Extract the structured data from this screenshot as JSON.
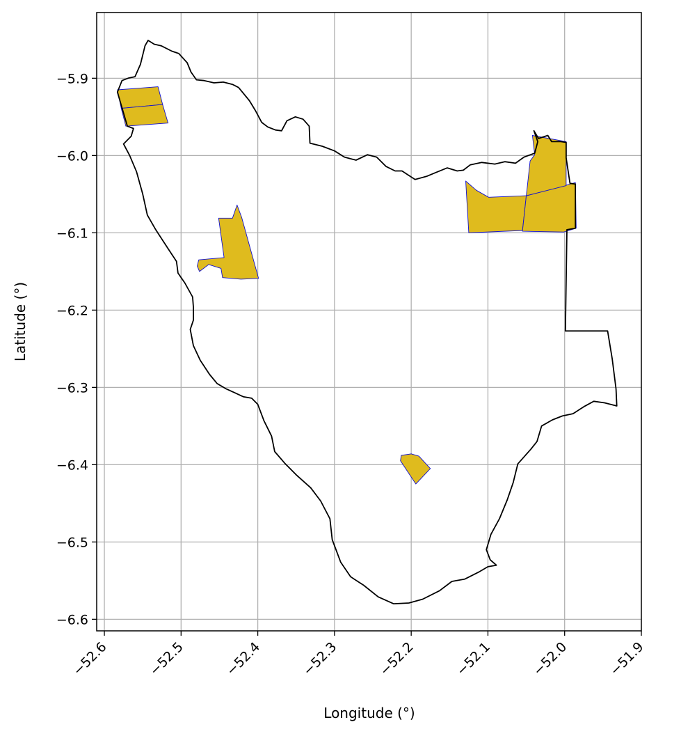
{
  "chart_data": {
    "type": "map",
    "xlabel": "Longitude (°)",
    "ylabel": "Latitude (°)",
    "xlim": [
      -52.61,
      -51.9
    ],
    "ylim": [
      -6.615,
      -5.815
    ],
    "x_ticks": [
      -52.6,
      -52.5,
      -52.4,
      -52.3,
      -52.2,
      -52.1,
      -52.0,
      -51.9
    ],
    "x_tick_labels": [
      "−52.6",
      "−52.5",
      "−52.4",
      "−52.3",
      "−52.2",
      "−52.1",
      "−52.0",
      "−51.9"
    ],
    "y_ticks": [
      -5.9,
      -6.0,
      -6.1,
      -6.2,
      -6.3,
      -6.4,
      -6.5,
      -6.6
    ],
    "y_tick_labels": [
      "−5.9",
      "−6.0",
      "−6.1",
      "−6.2",
      "−6.3",
      "−6.4",
      "−6.5",
      "−6.6"
    ],
    "grid": true,
    "colors": {
      "boundary": "#000000",
      "parcel_fill": "#dfbb1e",
      "parcel_edge": "#1010d0",
      "grid": "#b0b0b0"
    },
    "boundary": [
      [
        -52.543,
        -5.851
      ],
      [
        -52.535,
        -5.856
      ],
      [
        -52.526,
        -5.858
      ],
      [
        -52.512,
        -5.865
      ],
      [
        -52.503,
        -5.868
      ],
      [
        -52.492,
        -5.88
      ],
      [
        -52.487,
        -5.892
      ],
      [
        -52.48,
        -5.902
      ],
      [
        -52.47,
        -5.903
      ],
      [
        -52.457,
        -5.906
      ],
      [
        -52.445,
        -5.905
      ],
      [
        -52.433,
        -5.908
      ],
      [
        -52.425,
        -5.912
      ],
      [
        -52.411,
        -5.929
      ],
      [
        -52.403,
        -5.942
      ],
      [
        -52.395,
        -5.957
      ],
      [
        -52.387,
        -5.963
      ],
      [
        -52.377,
        -5.967
      ],
      [
        -52.369,
        -5.968
      ],
      [
        -52.362,
        -5.955
      ],
      [
        -52.351,
        -5.95
      ],
      [
        -52.341,
        -5.953
      ],
      [
        -52.333,
        -5.962
      ],
      [
        -52.332,
        -5.984
      ],
      [
        -52.316,
        -5.988
      ],
      [
        -52.3,
        -5.994
      ],
      [
        -52.287,
        -6.002
      ],
      [
        -52.272,
        -6.006
      ],
      [
        -52.257,
        -5.999
      ],
      [
        -52.245,
        -6.002
      ],
      [
        -52.233,
        -6.014
      ],
      [
        -52.221,
        -6.02
      ],
      [
        -52.212,
        -6.02
      ],
      [
        -52.195,
        -6.031
      ],
      [
        -52.18,
        -6.027
      ],
      [
        -52.168,
        -6.022
      ],
      [
        -52.153,
        -6.016
      ],
      [
        -52.14,
        -6.02
      ],
      [
        -52.132,
        -6.019
      ],
      [
        -52.123,
        -6.012
      ],
      [
        -52.108,
        -6.009
      ],
      [
        -52.091,
        -6.011
      ],
      [
        -52.078,
        -6.008
      ],
      [
        -52.064,
        -6.01
      ],
      [
        -52.053,
        -6.002
      ],
      [
        -52.039,
        -5.997
      ],
      [
        -52.035,
        -5.982
      ],
      [
        -52.04,
        -5.968
      ],
      [
        -52.034,
        -5.978
      ],
      [
        -52.022,
        -5.974
      ],
      [
        -52.017,
        -5.982
      ],
      [
        -52.005,
        -5.982
      ],
      [
        -51.998,
        -5.983
      ],
      [
        -51.998,
        -6.003
      ],
      [
        -51.993,
        -6.036
      ],
      [
        -51.986,
        -6.037
      ],
      [
        -51.986,
        -6.055
      ],
      [
        -51.986,
        -6.094
      ],
      [
        -51.997,
        -6.096
      ],
      [
        -51.999,
        -6.227
      ],
      [
        -51.944,
        -6.227
      ],
      [
        -51.938,
        -6.263
      ],
      [
        -51.933,
        -6.302
      ],
      [
        -51.932,
        -6.324
      ],
      [
        -51.948,
        -6.32
      ],
      [
        -51.962,
        -6.318
      ],
      [
        -51.975,
        -6.325
      ],
      [
        -51.989,
        -6.334
      ],
      [
        -52.003,
        -6.337
      ],
      [
        -52.016,
        -6.342
      ],
      [
        -52.03,
        -6.35
      ],
      [
        -52.036,
        -6.37
      ],
      [
        -52.044,
        -6.38
      ],
      [
        -52.061,
        -6.399
      ],
      [
        -52.067,
        -6.423
      ],
      [
        -52.075,
        -6.446
      ],
      [
        -52.085,
        -6.47
      ],
      [
        -52.096,
        -6.49
      ],
      [
        -52.102,
        -6.51
      ],
      [
        -52.097,
        -6.523
      ],
      [
        -52.089,
        -6.53
      ],
      [
        -52.1,
        -6.532
      ],
      [
        -52.112,
        -6.539
      ],
      [
        -52.13,
        -6.548
      ],
      [
        -52.147,
        -6.551
      ],
      [
        -52.163,
        -6.563
      ],
      [
        -52.185,
        -6.574
      ],
      [
        -52.203,
        -6.579
      ],
      [
        -52.223,
        -6.58
      ],
      [
        -52.243,
        -6.571
      ],
      [
        -52.262,
        -6.556
      ],
      [
        -52.279,
        -6.545
      ],
      [
        -52.292,
        -6.526
      ],
      [
        -52.303,
        -6.497
      ],
      [
        -52.306,
        -6.47
      ],
      [
        -52.318,
        -6.447
      ],
      [
        -52.331,
        -6.43
      ],
      [
        -52.35,
        -6.413
      ],
      [
        -52.365,
        -6.398
      ],
      [
        -52.378,
        -6.383
      ],
      [
        -52.382,
        -6.363
      ],
      [
        -52.392,
        -6.343
      ],
      [
        -52.4,
        -6.322
      ],
      [
        -52.408,
        -6.314
      ],
      [
        -52.419,
        -6.312
      ],
      [
        -52.43,
        -6.307
      ],
      [
        -52.441,
        -6.302
      ],
      [
        -52.453,
        -6.295
      ],
      [
        -52.463,
        -6.283
      ],
      [
        -52.475,
        -6.265
      ],
      [
        -52.484,
        -6.246
      ],
      [
        -52.488,
        -6.225
      ],
      [
        -52.484,
        -6.213
      ],
      [
        -52.484,
        -6.196
      ],
      [
        -52.485,
        -6.183
      ],
      [
        -52.495,
        -6.165
      ],
      [
        -52.504,
        -6.152
      ],
      [
        -52.506,
        -6.137
      ],
      [
        -52.518,
        -6.119
      ],
      [
        -52.533,
        -6.096
      ],
      [
        -52.544,
        -6.077
      ],
      [
        -52.55,
        -6.05
      ],
      [
        -52.558,
        -6.021
      ],
      [
        -52.567,
        -6.0
      ],
      [
        -52.575,
        -5.985
      ],
      [
        -52.565,
        -5.975
      ],
      [
        -52.562,
        -5.965
      ],
      [
        -52.57,
        -5.962
      ],
      [
        -52.583,
        -5.918
      ],
      [
        -52.577,
        -5.903
      ],
      [
        -52.569,
        -5.9
      ],
      [
        -52.56,
        -5.898
      ],
      [
        -52.553,
        -5.882
      ],
      [
        -52.547,
        -5.858
      ],
      [
        -52.543,
        -5.851
      ]
    ],
    "parcels": [
      [
        [
          -52.583,
          -5.915
        ],
        [
          -52.53,
          -5.911
        ],
        [
          -52.524,
          -5.934
        ],
        [
          -52.578,
          -5.939
        ]
      ],
      [
        [
          -52.578,
          -5.939
        ],
        [
          -52.524,
          -5.934
        ],
        [
          -52.517,
          -5.958
        ],
        [
          -52.572,
          -5.962
        ]
      ],
      [
        [
          -52.427,
          -6.064
        ],
        [
          -52.421,
          -6.08
        ],
        [
          -52.399,
          -6.159
        ],
        [
          -52.422,
          -6.16
        ],
        [
          -52.446,
          -6.158
        ],
        [
          -52.448,
          -6.146
        ],
        [
          -52.464,
          -6.141
        ],
        [
          -52.476,
          -6.15
        ],
        [
          -52.479,
          -6.143
        ],
        [
          -52.477,
          -6.135
        ],
        [
          -52.444,
          -6.132
        ],
        [
          -52.451,
          -6.081
        ],
        [
          -52.433,
          -6.081
        ],
        [
          -52.427,
          -6.064
        ]
      ],
      [
        [
          -52.129,
          -6.033
        ],
        [
          -52.115,
          -6.045
        ],
        [
          -52.099,
          -6.054
        ],
        [
          -52.05,
          -6.052
        ],
        [
          -52.055,
          -6.097
        ],
        [
          -52.125,
          -6.1
        ]
      ],
      [
        [
          -52.05,
          -6.052
        ],
        [
          -52.0,
          -6.039
        ],
        [
          -51.986,
          -6.035
        ],
        [
          -51.985,
          -6.094
        ],
        [
          -52.001,
          -6.099
        ],
        [
          -52.055,
          -6.098
        ]
      ],
      [
        [
          -52.042,
          -5.974
        ],
        [
          -51.998,
          -5.982
        ],
        [
          -51.998,
          -6.039
        ],
        [
          -52.05,
          -6.052
        ],
        [
          -52.045,
          -6.007
        ],
        [
          -52.039,
          -5.999
        ]
      ],
      [
        [
          -52.213,
          -6.388
        ],
        [
          -52.2,
          -6.386
        ],
        [
          -52.19,
          -6.389
        ],
        [
          -52.175,
          -6.405
        ],
        [
          -52.194,
          -6.425
        ],
        [
          -52.214,
          -6.395
        ]
      ]
    ]
  }
}
